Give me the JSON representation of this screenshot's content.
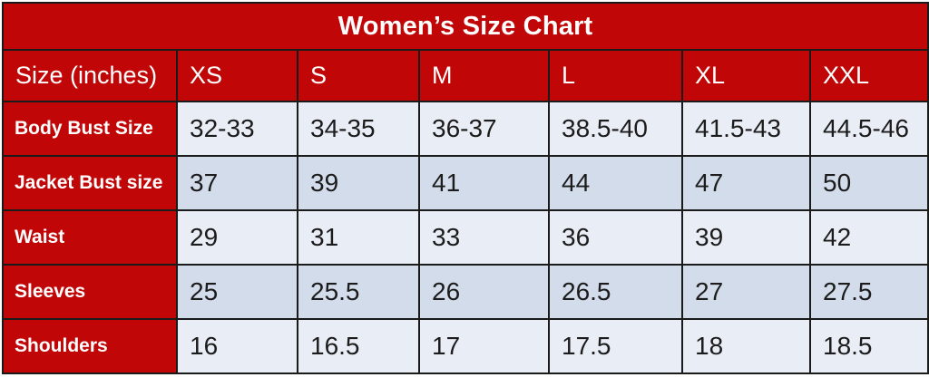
{
  "chart_data": {
    "type": "table",
    "title": "Women’s Size Chart",
    "corner_label": "Size (inches)",
    "unit": "inches",
    "columns": [
      "XS",
      "S",
      "M",
      "L",
      "XL",
      "XXL"
    ],
    "rows": [
      {
        "label": "Body Bust Size",
        "values": [
          "32-33",
          "34-35",
          "36-37",
          "38.5-40",
          "41.5-43",
          "44.5-46"
        ]
      },
      {
        "label": "Jacket Bust size",
        "values": [
          "37",
          "39",
          "41",
          "44",
          "47",
          "50"
        ]
      },
      {
        "label": "Waist",
        "values": [
          "29",
          "31",
          "33",
          "36",
          "39",
          "42"
        ]
      },
      {
        "label": "Sleeves",
        "values": [
          "25",
          "25.5",
          "26",
          "26.5",
          "27",
          "27.5"
        ]
      },
      {
        "label": "Shoulders",
        "values": [
          "16",
          "16.5",
          "17",
          "17.5",
          "18",
          "18.5"
        ]
      }
    ]
  },
  "colors": {
    "header_red": "#C00606",
    "row_light": "#E9EDF6",
    "row_dark": "#D3DCEB",
    "border_dark": "#1A1A1A",
    "text_light": "#FFFFFF",
    "text_dark": "#1C1C1C",
    "page_bg": "#FFFFFF"
  }
}
